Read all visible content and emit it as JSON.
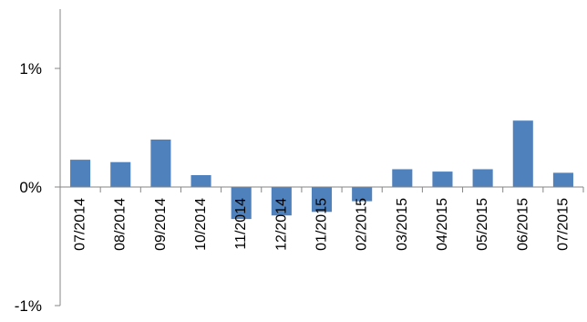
{
  "chart_data": {
    "type": "bar",
    "categories": [
      "07/2014",
      "08/2014",
      "09/2014",
      "10/2014",
      "11/2014",
      "12/2014",
      "01/2015",
      "02/2015",
      "03/2015",
      "04/2015",
      "05/2015",
      "06/2015",
      "07/2015"
    ],
    "series": [
      {
        "values": [
          0.23,
          0.21,
          0.4,
          0.1,
          -0.27,
          -0.24,
          -0.21,
          -0.12,
          0.15,
          0.13,
          0.15,
          0.56,
          0.12
        ],
        "color": "#4f81bd"
      }
    ],
    "ylim": [
      -1,
      1.5
    ],
    "yticks": [
      -1,
      0,
      1
    ],
    "ytick_labels": [
      "-1%",
      "0%",
      "1%"
    ],
    "title": "",
    "xlabel": "",
    "ylabel": "",
    "grid": false,
    "legend": "none"
  }
}
